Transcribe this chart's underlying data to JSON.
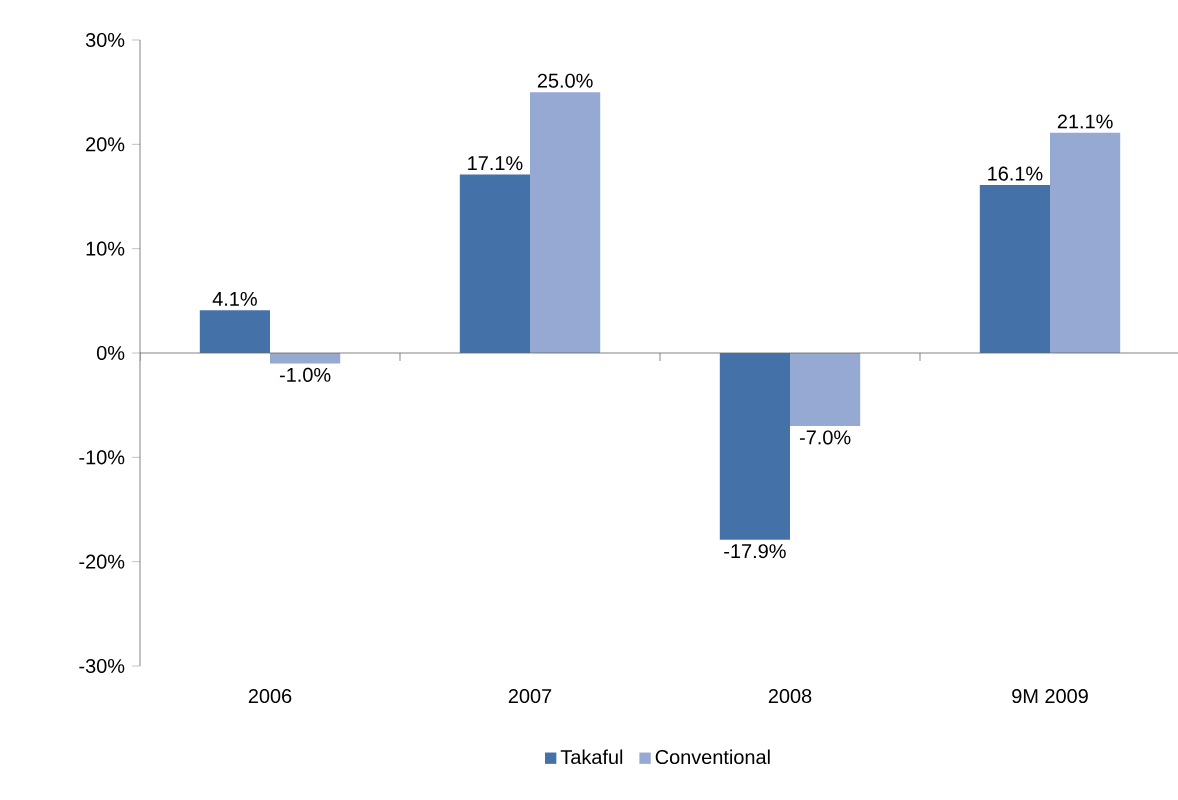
{
  "chart_data": {
    "type": "bar",
    "categories": [
      "2006",
      "2007",
      "2008",
      "9M 2009"
    ],
    "series": [
      {
        "name": "Takaful",
        "color": "#4472a8",
        "values": [
          4.1,
          17.1,
          -17.9,
          16.1
        ],
        "value_labels": [
          "4.1%",
          "17.1%",
          "-17.9%",
          "16.1%"
        ]
      },
      {
        "name": "Conventional",
        "color": "#95a9d3",
        "values": [
          -1.0,
          25.0,
          -7.0,
          21.1
        ],
        "value_labels": [
          "-1.0%",
          "25.0%",
          "-7.0%",
          "21.1%"
        ]
      }
    ],
    "ylim": [
      -30,
      30
    ],
    "yticks": [
      {
        "value": -30,
        "label": "-30%"
      },
      {
        "value": -20,
        "label": "-20%"
      },
      {
        "value": -10,
        "label": "-10%"
      },
      {
        "value": 0,
        "label": "0%"
      },
      {
        "value": 10,
        "label": "10%"
      },
      {
        "value": 20,
        "label": "20%"
      },
      {
        "value": 30,
        "label": "30%"
      }
    ],
    "legend": "bottom"
  }
}
